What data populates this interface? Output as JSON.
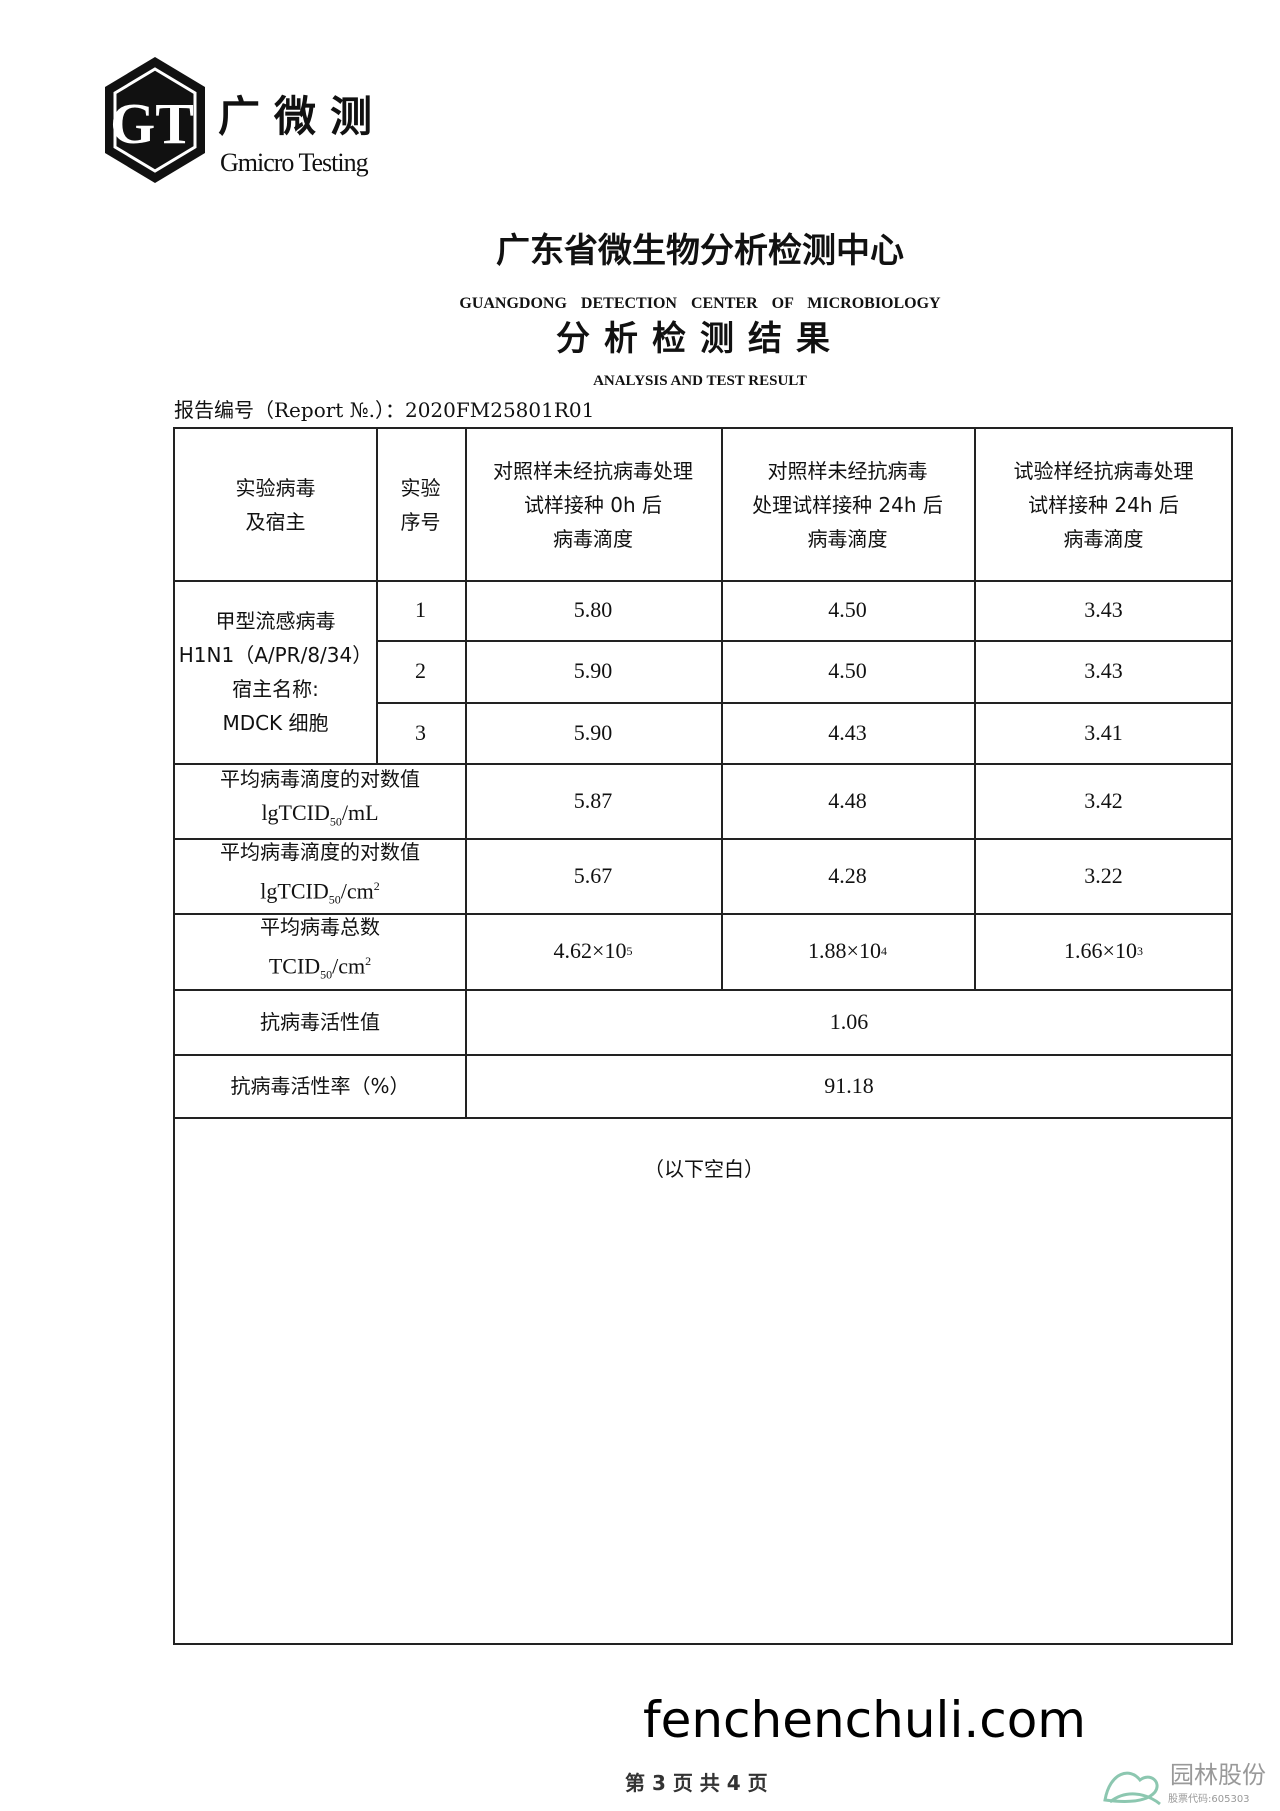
{
  "header": {
    "logo_cn": "广微测",
    "logo_en": "Gmicro Testing",
    "logo_mark": "GT",
    "org_cn": "广东省微生物分析检测中心",
    "org_en": "GUANGDONG DETECTION CENTER OF MICROBIOLOGY",
    "doc_cn": "分析检测结果",
    "doc_en": "ANALYSIS AND TEST RESULT",
    "report_no": "报告编号（Report №.）：2020FM25801R01"
  },
  "table": {
    "headers": [
      "实验病毒\n及宿主",
      "实验\n序号",
      "对照样未经抗病毒处理\n试样接种 0h 后\n病毒滴度",
      "对照样未经抗病毒\n处理试样接种 24h 后\n病毒滴度",
      "试验样经抗病毒处理\n试样接种 24h 后\n病毒滴度"
    ],
    "virus": "甲型流感病毒\nH1N1（A/PR/8/34）\n宿主名称:\nMDCK 细胞",
    "rows": [
      {
        "seq": "1",
        "values": [
          "5.80",
          "4.50",
          "3.43"
        ]
      },
      {
        "seq": "2",
        "values": [
          "5.90",
          "4.50",
          "3.43"
        ]
      },
      {
        "seq": "3",
        "values": [
          "5.90",
          "4.43",
          "3.41"
        ]
      }
    ],
    "avg_ml": {
      "label": "平均病毒滴度的对数值",
      "unit": "lgTCID",
      "unit_sub": "50",
      "unit_tail": "/mL",
      "values": [
        "5.87",
        "4.48",
        "3.42"
      ]
    },
    "avg_cm2": {
      "label": "平均病毒滴度的对数值",
      "unit": "lgTCID",
      "unit_sub": "50",
      "unit_tail": "/cm",
      "unit_sup": "2",
      "values": [
        "5.67",
        "4.28",
        "3.22"
      ]
    },
    "total": {
      "label": "平均病毒总数",
      "unit": "TCID",
      "unit_sub": "50",
      "unit_tail": "/cm",
      "unit_sup": "2",
      "values": [
        {
          "m": "4.62×10",
          "e": "5"
        },
        {
          "m": "1.88×10",
          "e": "4"
        },
        {
          "m": "1.66×10",
          "e": "3"
        }
      ]
    },
    "activity_value": {
      "label": "抗病毒活性值",
      "value": "1.06"
    },
    "activity_rate": {
      "label": "抗病毒活性率（%）",
      "value": "91.18"
    },
    "blank_note": "（以下空白）"
  },
  "footer": {
    "page": "第 3 页 共 4 页",
    "watermark": "fenchenchuli.com",
    "brand_cn": "园林股份",
    "brand_code": "股票代码:605303"
  }
}
